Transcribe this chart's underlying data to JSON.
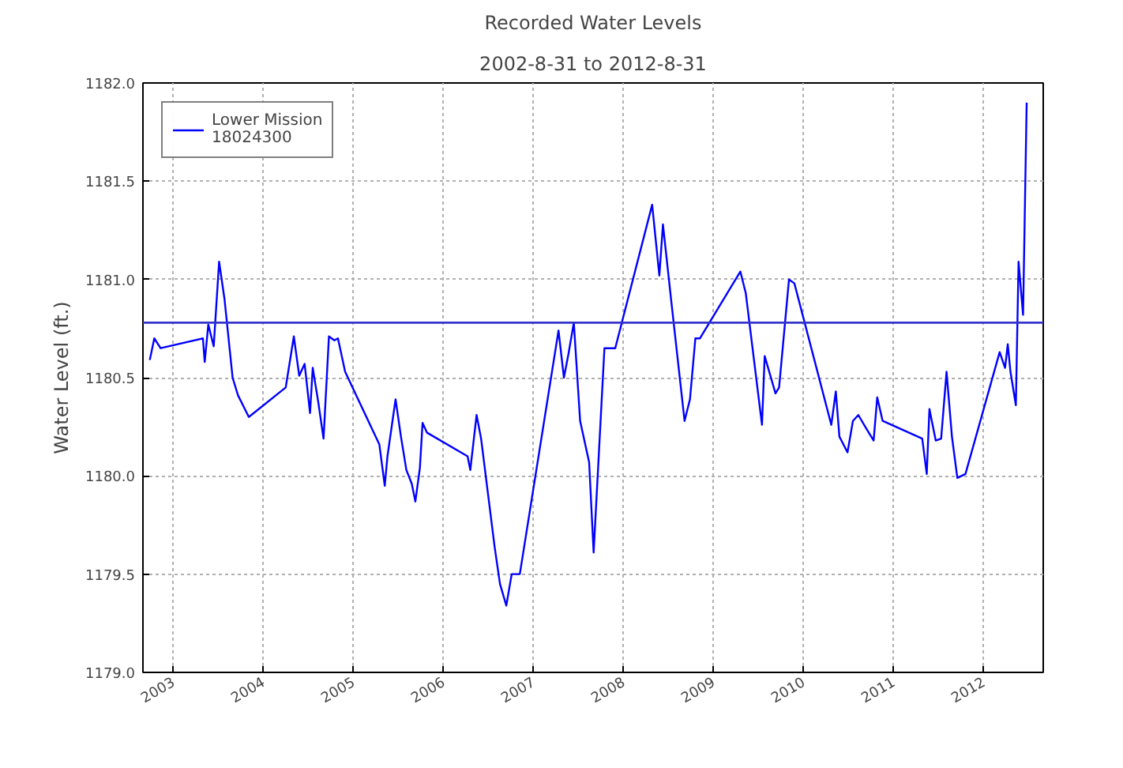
{
  "chart_data": {
    "type": "line",
    "title": "Recorded Water Levels",
    "subtitle": "2002-8-31 to 2012-8-31",
    "ylabel": "Water Level (ft.)",
    "xlim": [
      2002.664,
      2012.664
    ],
    "xticks": [
      2003,
      2004,
      2005,
      2006,
      2007,
      2008,
      2009,
      2010,
      2011,
      2012
    ],
    "ylim": [
      1179.0,
      1182.0
    ],
    "yticks": [
      {
        "value": 1179.0,
        "label": "1179.0"
      },
      {
        "value": 1179.5,
        "label": "1179.5"
      },
      {
        "value": 1180.0,
        "label": "1180.0"
      },
      {
        "value": 1180.5,
        "label": "1180.5"
      },
      {
        "value": 1181.0,
        "label": "1181.0"
      },
      {
        "value": 1181.5,
        "label": "1181.5"
      },
      {
        "value": 1182.0,
        "label": "1182.0"
      }
    ],
    "grid": true,
    "legend": "top left",
    "line_style": "solid",
    "ref_lines": [
      {
        "axis": "y",
        "value": 1180.78,
        "color": "#3333cc"
      }
    ],
    "series": [
      {
        "name": "Lower Mission\n18024300",
        "color": "#0000ff",
        "x": [
          2002.74,
          2002.79,
          2002.86,
          2003.33,
          2003.35,
          2003.39,
          2003.45,
          2003.51,
          2003.57,
          2003.66,
          2003.72,
          2003.84,
          2004.25,
          2004.34,
          2004.4,
          2004.46,
          2004.52,
          2004.55,
          2004.61,
          2004.67,
          2004.73,
          2004.79,
          2004.83,
          2004.91,
          2005.29,
          2005.35,
          2005.38,
          2005.47,
          2005.53,
          2005.59,
          2005.65,
          2005.69,
          2005.74,
          2005.77,
          2005.82,
          2006.27,
          2006.3,
          2006.37,
          2006.42,
          2006.57,
          2006.63,
          2006.7,
          2006.76,
          2006.85,
          2007.28,
          2007.34,
          2007.39,
          2007.45,
          2007.52,
          2007.62,
          2007.67,
          2007.79,
          2007.82,
          2007.91,
          2008.32,
          2008.4,
          2008.44,
          2008.53,
          2008.68,
          2008.74,
          2008.8,
          2008.85,
          2009.3,
          2009.36,
          2009.54,
          2009.57,
          2009.69,
          2009.73,
          2009.84,
          2009.9,
          2010.31,
          2010.36,
          2010.4,
          2010.49,
          2010.55,
          2010.61,
          2010.7,
          2010.78,
          2010.82,
          2010.88,
          2011.32,
          2011.37,
          2011.4,
          2011.47,
          2011.53,
          2011.59,
          2011.65,
          2011.71,
          2011.8,
          2012.18,
          2012.24,
          2012.27,
          2012.3,
          2012.36,
          2012.39,
          2012.44,
          2012.48
        ],
        "values": [
          1180.59,
          1180.7,
          1180.65,
          1180.7,
          1180.58,
          1180.77,
          1180.66,
          1181.09,
          1180.9,
          1180.5,
          1180.41,
          1180.3,
          1180.45,
          1180.71,
          1180.51,
          1180.57,
          1180.32,
          1180.55,
          1180.38,
          1180.19,
          1180.71,
          1180.69,
          1180.7,
          1180.53,
          1180.16,
          1179.95,
          1180.1,
          1180.39,
          1180.2,
          1180.03,
          1179.96,
          1179.87,
          1180.04,
          1180.27,
          1180.22,
          1180.1,
          1180.03,
          1180.31,
          1180.19,
          1179.64,
          1179.45,
          1179.34,
          1179.5,
          1179.5,
          1180.74,
          1180.5,
          1180.62,
          1180.78,
          1180.28,
          1180.07,
          1179.61,
          1180.65,
          1180.65,
          1180.65,
          1181.38,
          1181.02,
          1181.28,
          1180.9,
          1180.28,
          1180.39,
          1180.7,
          1180.7,
          1181.04,
          1180.93,
          1180.26,
          1180.61,
          1180.42,
          1180.45,
          1181.0,
          1180.98,
          1180.26,
          1180.43,
          1180.2,
          1180.12,
          1180.28,
          1180.31,
          1180.24,
          1180.18,
          1180.4,
          1180.28,
          1180.19,
          1180.01,
          1180.34,
          1180.18,
          1180.19,
          1180.53,
          1180.2,
          1179.99,
          1180.01,
          1180.63,
          1180.55,
          1180.67,
          1180.53,
          1180.36,
          1181.09,
          1180.82,
          1181.9
        ]
      }
    ]
  }
}
